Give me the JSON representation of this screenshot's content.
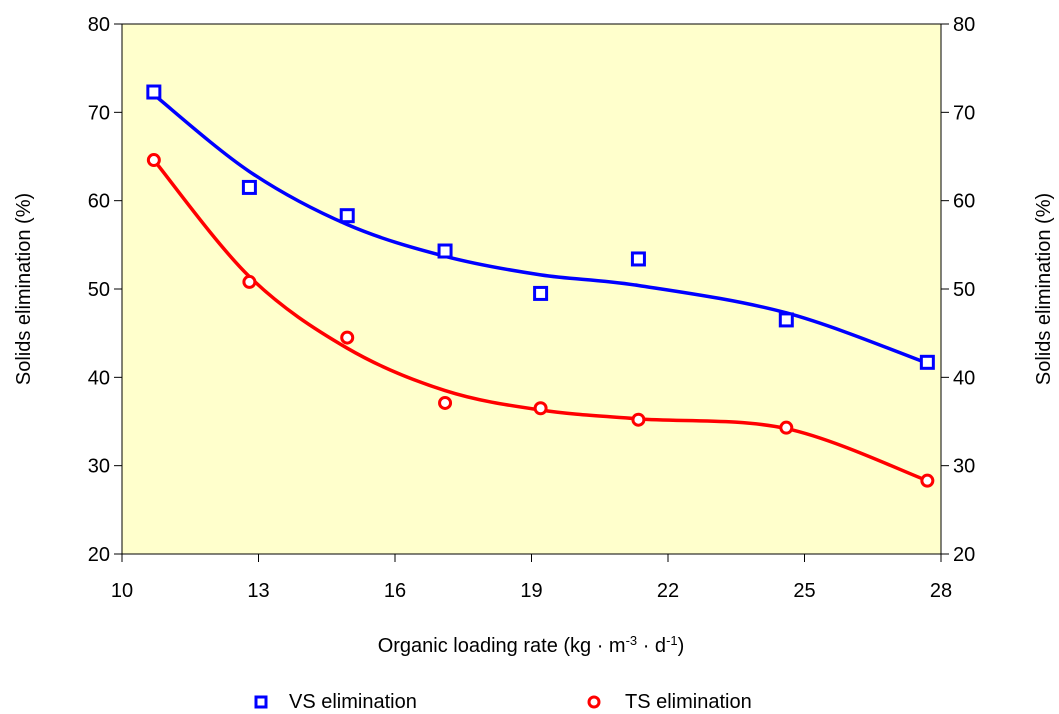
{
  "chart_data": {
    "type": "scatter",
    "title": "",
    "xlabel": {
      "prefix": "Organic  loading  rate (kg · m",
      "sup1": "-3",
      "middle": " · d",
      "sup2": "-1",
      "suffix": ")"
    },
    "ylabel_left": "Solids  elimination (%)",
    "ylabel_right": "Solids  elimination (%)",
    "xlim": [
      10,
      28
    ],
    "ylim": [
      20,
      80
    ],
    "x_ticks": [
      "10",
      "13",
      "16",
      "19",
      "22",
      "25",
      "28"
    ],
    "y_ticks": [
      "20",
      "30",
      "40",
      "50",
      "60",
      "70",
      "80"
    ],
    "grid": false,
    "legend_position": "bottom",
    "plot_background": "#ffffcc",
    "series": [
      {
        "name": "VS  elimination",
        "color": "#0000ff",
        "marker": "square",
        "x": [
          10.7,
          12.8,
          14.95,
          17.1,
          19.2,
          21.35,
          24.6,
          27.7
        ],
        "y": [
          72.3,
          61.5,
          58.3,
          54.3,
          49.5,
          53.4,
          46.5,
          41.7
        ],
        "fit_y": [
          72.0,
          63.3,
          57.3,
          53.7,
          51.6,
          50.4,
          47.3,
          41.6
        ]
      },
      {
        "name": "TS  elimination",
        "color": "#ff0000",
        "marker": "circle",
        "x": [
          10.7,
          12.8,
          14.95,
          17.1,
          19.2,
          21.35,
          24.6,
          27.7
        ],
        "y": [
          64.6,
          50.8,
          44.5,
          37.1,
          36.5,
          35.2,
          34.3,
          28.3
        ],
        "fit_y": [
          64.6,
          51.4,
          43.3,
          38.5,
          36.3,
          35.3,
          34.2,
          28.3
        ]
      }
    ]
  }
}
